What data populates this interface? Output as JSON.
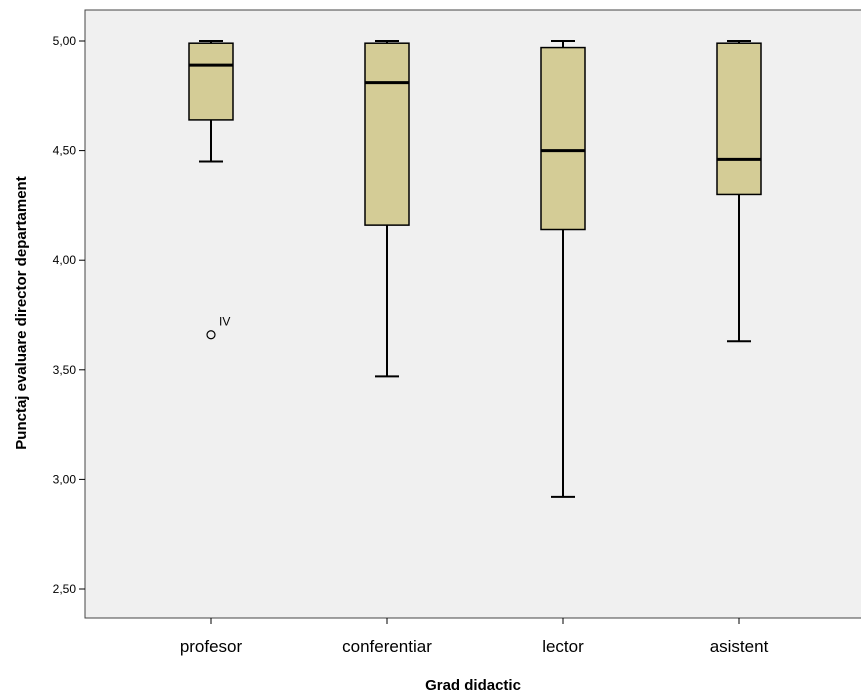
{
  "chart_data": {
    "type": "boxplot",
    "xlabel": "Grad didactic",
    "ylabel": "Punctaj evaluare director departament",
    "ylim": [
      2.43,
      5.15
    ],
    "yticks": [
      {
        "value": 2.5,
        "label": "2,50"
      },
      {
        "value": 3.0,
        "label": "3,00"
      },
      {
        "value": 3.5,
        "label": "3,50"
      },
      {
        "value": 4.0,
        "label": "4,00"
      },
      {
        "value": 4.5,
        "label": "4,50"
      },
      {
        "value": 5.0,
        "label": "5,00"
      }
    ],
    "grid": false,
    "colors": {
      "box_fill": "#d4cc96",
      "plot_bg": "#f0f0f0",
      "stroke": "#000000"
    },
    "categories": [
      "profesor",
      "conferentiar",
      "lector",
      "asistent"
    ],
    "boxes": [
      {
        "category": "profesor",
        "whisker_low": 4.45,
        "q1": 4.64,
        "median": 4.89,
        "q3": 4.99,
        "whisker_high": 5.0,
        "outliers": [
          {
            "value": 3.66,
            "label": "IV"
          }
        ]
      },
      {
        "category": "conferentiar",
        "whisker_low": 3.47,
        "q1": 4.16,
        "median": 4.81,
        "q3": 4.99,
        "whisker_high": 5.0,
        "outliers": []
      },
      {
        "category": "lector",
        "whisker_low": 2.92,
        "q1": 4.14,
        "median": 4.5,
        "q3": 4.97,
        "whisker_high": 5.0,
        "outliers": []
      },
      {
        "category": "asistent",
        "whisker_low": 3.63,
        "q1": 4.3,
        "median": 4.46,
        "q3": 4.99,
        "whisker_high": 5.0,
        "outliers": []
      }
    ]
  }
}
